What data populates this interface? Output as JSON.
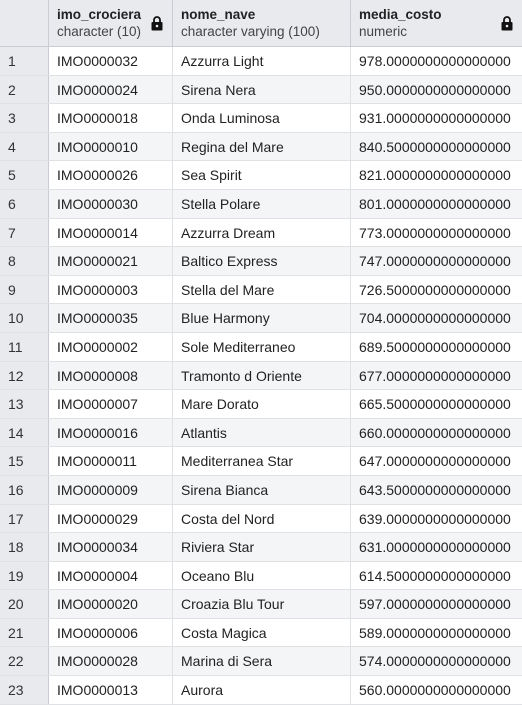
{
  "columns": [
    {
      "name": "imo_crociera",
      "type": "character (10)"
    },
    {
      "name": "nome_nave",
      "type": "character varying (100)"
    },
    {
      "name": "media_costo",
      "type": "numeric"
    }
  ],
  "icons": {
    "lock": "lock-icon"
  },
  "rows": [
    {
      "n": "1",
      "imo": "IMO0000032",
      "nome": "Azzurra Light",
      "costo": "978.0000000000000000"
    },
    {
      "n": "2",
      "imo": "IMO0000024",
      "nome": "Sirena Nera",
      "costo": "950.0000000000000000"
    },
    {
      "n": "3",
      "imo": "IMO0000018",
      "nome": "Onda Luminosa",
      "costo": "931.0000000000000000"
    },
    {
      "n": "4",
      "imo": "IMO0000010",
      "nome": "Regina del Mare",
      "costo": "840.5000000000000000"
    },
    {
      "n": "5",
      "imo": "IMO0000026",
      "nome": "Sea Spirit",
      "costo": "821.0000000000000000"
    },
    {
      "n": "6",
      "imo": "IMO0000030",
      "nome": "Stella Polare",
      "costo": "801.0000000000000000"
    },
    {
      "n": "7",
      "imo": "IMO0000014",
      "nome": "Azzurra Dream",
      "costo": "773.0000000000000000"
    },
    {
      "n": "8",
      "imo": "IMO0000021",
      "nome": "Baltico Express",
      "costo": "747.0000000000000000"
    },
    {
      "n": "9",
      "imo": "IMO0000003",
      "nome": "Stella del Mare",
      "costo": "726.5000000000000000"
    },
    {
      "n": "10",
      "imo": "IMO0000035",
      "nome": "Blue Harmony",
      "costo": "704.0000000000000000"
    },
    {
      "n": "11",
      "imo": "IMO0000002",
      "nome": "Sole Mediterraneo",
      "costo": "689.5000000000000000"
    },
    {
      "n": "12",
      "imo": "IMO0000008",
      "nome": "Tramonto d Oriente",
      "costo": "677.0000000000000000"
    },
    {
      "n": "13",
      "imo": "IMO0000007",
      "nome": "Mare Dorato",
      "costo": "665.5000000000000000"
    },
    {
      "n": "14",
      "imo": "IMO0000016",
      "nome": "Atlantis",
      "costo": "660.0000000000000000"
    },
    {
      "n": "15",
      "imo": "IMO0000011",
      "nome": "Mediterranea Star",
      "costo": "647.0000000000000000"
    },
    {
      "n": "16",
      "imo": "IMO0000009",
      "nome": "Sirena Bianca",
      "costo": "643.5000000000000000"
    },
    {
      "n": "17",
      "imo": "IMO0000029",
      "nome": "Costa del Nord",
      "costo": "639.0000000000000000"
    },
    {
      "n": "18",
      "imo": "IMO0000034",
      "nome": "Riviera Star",
      "costo": "631.0000000000000000"
    },
    {
      "n": "19",
      "imo": "IMO0000004",
      "nome": "Oceano Blu",
      "costo": "614.5000000000000000"
    },
    {
      "n": "20",
      "imo": "IMO0000020",
      "nome": "Croazia Blu Tour",
      "costo": "597.0000000000000000"
    },
    {
      "n": "21",
      "imo": "IMO0000006",
      "nome": "Costa Magica",
      "costo": "589.0000000000000000"
    },
    {
      "n": "22",
      "imo": "IMO0000028",
      "nome": "Marina di Sera",
      "costo": "574.0000000000000000"
    },
    {
      "n": "23",
      "imo": "IMO0000013",
      "nome": "Aurora",
      "costo": "560.0000000000000000"
    }
  ]
}
